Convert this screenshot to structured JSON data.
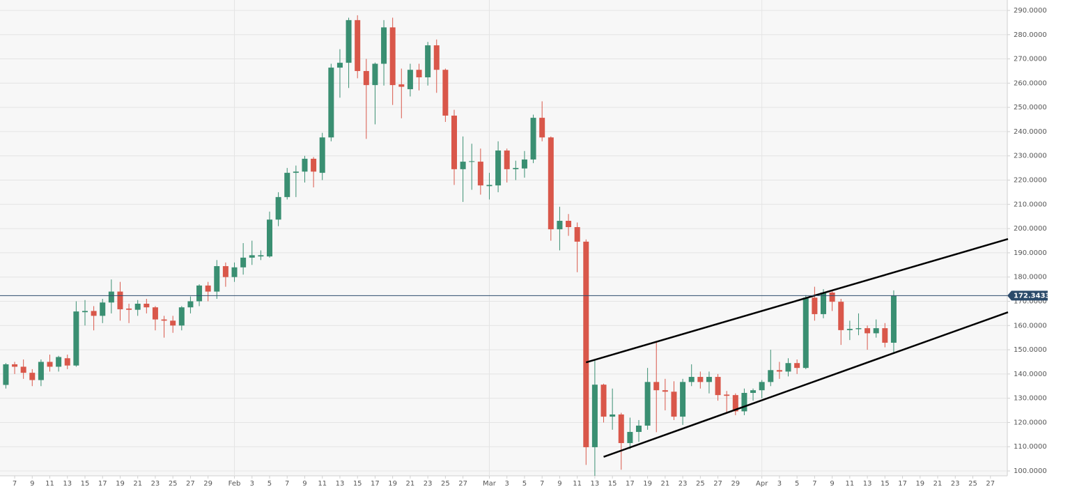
{
  "chart_data": {
    "type": "candlestick",
    "x": [
      "01-06",
      "01-07",
      "01-08",
      "01-09",
      "01-10",
      "01-11",
      "01-12",
      "01-13",
      "01-14",
      "01-15",
      "01-16",
      "01-17",
      "01-18",
      "01-19",
      "01-20",
      "01-21",
      "01-22",
      "01-23",
      "01-24",
      "01-25",
      "01-26",
      "01-27",
      "01-28",
      "01-29",
      "01-30",
      "01-31",
      "02-01",
      "02-02",
      "02-03",
      "02-04",
      "02-05",
      "02-06",
      "02-07",
      "02-08",
      "02-09",
      "02-10",
      "02-11",
      "02-12",
      "02-13",
      "02-14",
      "02-15",
      "02-16",
      "02-17",
      "02-18",
      "02-19",
      "02-20",
      "02-21",
      "02-22",
      "02-23",
      "02-24",
      "02-25",
      "02-26",
      "02-27",
      "02-28",
      "02-29",
      "03-01",
      "03-02",
      "03-03",
      "03-04",
      "03-05",
      "03-06",
      "03-07",
      "03-08",
      "03-09",
      "03-10",
      "03-11",
      "03-12",
      "03-13",
      "03-14",
      "03-15",
      "03-16",
      "03-17",
      "03-18",
      "03-19",
      "03-20",
      "03-21",
      "03-22",
      "03-23",
      "03-24",
      "03-25",
      "03-26",
      "03-27",
      "03-28",
      "03-29",
      "03-30",
      "03-31",
      "04-01",
      "04-02",
      "04-03",
      "04-04",
      "04-05",
      "04-06",
      "04-07",
      "04-08",
      "04-09",
      "04-10",
      "04-11",
      "04-12",
      "04-13",
      "04-14",
      "04-15",
      "04-16"
    ],
    "open": [
      135.5,
      144,
      143,
      140.5,
      137.5,
      145,
      143,
      146.5,
      143.5,
      165.5,
      166,
      164,
      169.5,
      174,
      167,
      166.5,
      169,
      167.5,
      162.5,
      162,
      160,
      167.5,
      170,
      176.5,
      174,
      184.5,
      180,
      184,
      188,
      188.5,
      188.5,
      203.7,
      213,
      223,
      223.5,
      228.8,
      223,
      237.6,
      266.4,
      268.4,
      286,
      265,
      259.2,
      268,
      283,
      259.5,
      257.5,
      265.5,
      262.4,
      275.6,
      265.5,
      246.6,
      224.5,
      227.5,
      227.6,
      217.5,
      217.8,
      232.2,
      224.5,
      224.8,
      228.5,
      245.7,
      237.6,
      199.7,
      203.2,
      200.6,
      194.6,
      109.8,
      135.6,
      122.4,
      123.3,
      111.5,
      116.1,
      118.7,
      136.7,
      133.3,
      132.7,
      122.4,
      136.7,
      138.8,
      136.7,
      138.8,
      131.5,
      131.3,
      124.6,
      132.2,
      133.3,
      136.7,
      141.6,
      141,
      144.5,
      142.5,
      171.5,
      164.7,
      173.6,
      169.8,
      158.1,
      158.5,
      158.9,
      156.8,
      158.9,
      152.9
    ],
    "high": [
      144.5,
      145,
      146,
      142,
      146,
      148,
      147.5,
      148,
      170,
      170.5,
      168,
      171,
      179,
      178,
      169,
      170.5,
      171,
      168,
      164,
      164,
      168,
      172,
      177,
      178,
      187,
      186,
      186,
      194,
      195,
      191,
      207,
      215,
      225,
      226,
      230,
      229.5,
      239.5,
      268,
      274,
      287,
      288,
      270,
      268.5,
      286,
      287,
      266,
      268,
      268,
      277,
      278,
      266,
      249,
      238,
      235,
      233,
      223,
      236,
      233,
      228,
      232,
      247,
      252.5,
      238,
      209,
      206,
      202.5,
      195.5,
      146,
      136,
      134,
      124,
      122,
      121,
      142.5,
      153,
      138,
      137,
      138,
      144,
      141,
      141,
      140,
      133,
      132,
      134,
      134,
      137.5,
      150,
      145,
      146.5,
      146,
      172.5,
      176,
      175,
      174.5,
      171,
      162,
      165,
      160,
      162.5,
      161,
      174.5
    ],
    "low": [
      134,
      140,
      138,
      135,
      135,
      141,
      141,
      142,
      143,
      160,
      158,
      161,
      165,
      162,
      161,
      164,
      165,
      158,
      155,
      157,
      158,
      165,
      168,
      170,
      171,
      176,
      178,
      181,
      185,
      187,
      188,
      201,
      212,
      213,
      219,
      217,
      220,
      236,
      254,
      258,
      262,
      237,
      243,
      259,
      251,
      245.5,
      254.5,
      257,
      259,
      256,
      244,
      218,
      211,
      216,
      214,
      212,
      215,
      219,
      220,
      221,
      227,
      236,
      195,
      191,
      197,
      182,
      102.5,
      98,
      120,
      117,
      100.5,
      109,
      112,
      117,
      116,
      125,
      121,
      119,
      135,
      134,
      132,
      129,
      124,
      123,
      123,
      129,
      130,
      135,
      138,
      139,
      140,
      142,
      162,
      163,
      166,
      152,
      154,
      156,
      150,
      155,
      151,
      149
    ],
    "close": [
      144,
      143,
      140.5,
      137.5,
      145,
      143,
      147,
      143.5,
      165.8,
      166,
      164,
      169.5,
      174,
      166.7,
      166.5,
      169,
      167.5,
      162.5,
      162,
      160,
      167.5,
      170,
      176.5,
      174,
      184.5,
      180,
      184,
      188,
      189,
      189,
      203.7,
      213,
      223,
      223.5,
      228.8,
      223.5,
      237.6,
      266.4,
      268.4,
      286,
      265,
      259.2,
      268,
      283,
      259.2,
      258.5,
      265.5,
      262.4,
      275.6,
      265.5,
      246.6,
      224.5,
      227.6,
      227.8,
      217.8,
      218,
      232.2,
      224.5,
      225,
      228.5,
      245.7,
      237.6,
      199.7,
      203.2,
      200.6,
      194.6,
      109.8,
      135.6,
      122.4,
      123.3,
      111.5,
      116.1,
      118.7,
      136.7,
      133.3,
      132.7,
      122.4,
      136.7,
      138.8,
      136.7,
      138.8,
      131.3,
      131,
      124.6,
      132.2,
      133.3,
      136.7,
      141.6,
      141,
      144.5,
      142.5,
      171.5,
      164.7,
      173.6,
      169.8,
      158.1,
      158.6,
      158.9,
      156.8,
      158.9,
      152.9,
      172.34336
    ],
    "up_color": "#3a8f72",
    "down_color": "#d9574a",
    "xlim": [
      "01-05",
      "04-29"
    ],
    "ylim": [
      98,
      294.3
    ],
    "yticks": [
      {
        "value": 100,
        "label": "100.0000"
      },
      {
        "value": 110,
        "label": "110.0000"
      },
      {
        "value": 120,
        "label": "120.0000"
      },
      {
        "value": 130,
        "label": "130.0000"
      },
      {
        "value": 140,
        "label": "140.0000"
      },
      {
        "value": 150,
        "label": "150.0000"
      },
      {
        "value": 160,
        "label": "160.0000"
      },
      {
        "value": 170,
        "label": "170.0000"
      },
      {
        "value": 180,
        "label": "180.0000"
      },
      {
        "value": 190,
        "label": "190.0000"
      },
      {
        "value": 200,
        "label": "200.0000"
      },
      {
        "value": 210,
        "label": "210.0000"
      },
      {
        "value": 220,
        "label": "220.0000"
      },
      {
        "value": 230,
        "label": "230.0000"
      },
      {
        "value": 240,
        "label": "240.0000"
      },
      {
        "value": 250,
        "label": "250.0000"
      },
      {
        "value": 260,
        "label": "260.0000"
      },
      {
        "value": 270,
        "label": "270.0000"
      },
      {
        "value": 280,
        "label": "280.0000"
      },
      {
        "value": 290,
        "label": "290.0000"
      }
    ],
    "xticks": [
      {
        "value": "01-07",
        "label": "7"
      },
      {
        "value": "01-09",
        "label": "9"
      },
      {
        "value": "01-11",
        "label": "11"
      },
      {
        "value": "01-13",
        "label": "13"
      },
      {
        "value": "01-15",
        "label": "15"
      },
      {
        "value": "01-17",
        "label": "17"
      },
      {
        "value": "01-19",
        "label": "19"
      },
      {
        "value": "01-21",
        "label": "21"
      },
      {
        "value": "01-23",
        "label": "23"
      },
      {
        "value": "01-25",
        "label": "25"
      },
      {
        "value": "01-27",
        "label": "27"
      },
      {
        "value": "01-29",
        "label": "29"
      },
      {
        "value": "02-01",
        "label": "Feb"
      },
      {
        "value": "02-03",
        "label": "3"
      },
      {
        "value": "02-05",
        "label": "5"
      },
      {
        "value": "02-07",
        "label": "7"
      },
      {
        "value": "02-09",
        "label": "9"
      },
      {
        "value": "02-11",
        "label": "11"
      },
      {
        "value": "02-13",
        "label": "13"
      },
      {
        "value": "02-15",
        "label": "15"
      },
      {
        "value": "02-17",
        "label": "17"
      },
      {
        "value": "02-19",
        "label": "19"
      },
      {
        "value": "02-21",
        "label": "21"
      },
      {
        "value": "02-23",
        "label": "23"
      },
      {
        "value": "02-25",
        "label": "25"
      },
      {
        "value": "02-27",
        "label": "27"
      },
      {
        "value": "03-01",
        "label": "Mar"
      },
      {
        "value": "03-03",
        "label": "3"
      },
      {
        "value": "03-05",
        "label": "5"
      },
      {
        "value": "03-07",
        "label": "7"
      },
      {
        "value": "03-09",
        "label": "9"
      },
      {
        "value": "03-11",
        "label": "11"
      },
      {
        "value": "03-13",
        "label": "13"
      },
      {
        "value": "03-15",
        "label": "15"
      },
      {
        "value": "03-17",
        "label": "17"
      },
      {
        "value": "03-19",
        "label": "19"
      },
      {
        "value": "03-21",
        "label": "21"
      },
      {
        "value": "03-23",
        "label": "23"
      },
      {
        "value": "03-25",
        "label": "25"
      },
      {
        "value": "03-27",
        "label": "27"
      },
      {
        "value": "03-29",
        "label": "29"
      },
      {
        "value": "04-01",
        "label": "Apr"
      },
      {
        "value": "04-03",
        "label": "3"
      },
      {
        "value": "04-05",
        "label": "5"
      },
      {
        "value": "04-07",
        "label": "7"
      },
      {
        "value": "04-09",
        "label": "9"
      },
      {
        "value": "04-11",
        "label": "11"
      },
      {
        "value": "04-13",
        "label": "13"
      },
      {
        "value": "04-15",
        "label": "15"
      },
      {
        "value": "04-17",
        "label": "17"
      },
      {
        "value": "04-19",
        "label": "19"
      },
      {
        "value": "04-21",
        "label": "21"
      },
      {
        "value": "04-23",
        "label": "23"
      },
      {
        "value": "04-25",
        "label": "25"
      },
      {
        "value": "04-27",
        "label": "27"
      }
    ],
    "grid": true,
    "current_price": 172.34336,
    "price_line_color": "#2b4a6a",
    "trendlines": [
      {
        "x": [
          "03-12",
          "04-29"
        ],
        "y": [
          144.8,
          195.7
        ]
      },
      {
        "x": [
          "03-14",
          "04-29"
        ],
        "y": [
          105.8,
          165.5
        ]
      }
    ]
  }
}
